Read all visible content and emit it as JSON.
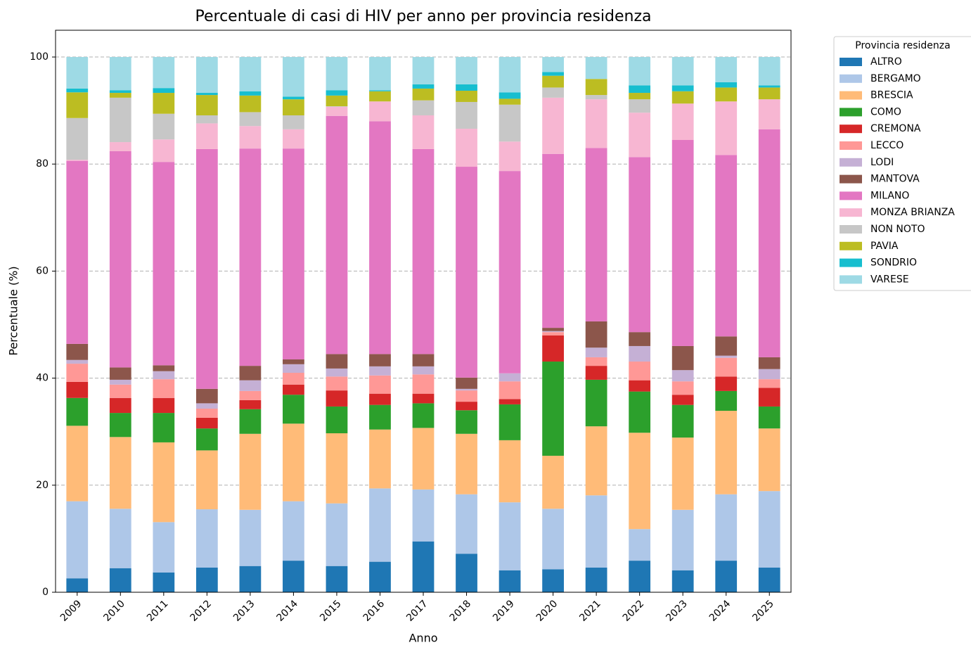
{
  "chart_data": {
    "type": "stacked_bar",
    "title": "Percentuale di casi di HIV per anno per provincia residenza",
    "x_label": "Anno",
    "y_label": "Percentuale (%)",
    "legend_title": "Provincia residenza",
    "categories": [
      "2009",
      "2010",
      "2011",
      "2012",
      "2013",
      "2014",
      "2015",
      "2016",
      "2017",
      "2018",
      "2019",
      "2020",
      "2021",
      "2022",
      "2023",
      "2024",
      "2025"
    ],
    "ylim": [
      0,
      105
    ],
    "yticks": [
      0,
      20,
      40,
      60,
      80,
      100
    ],
    "grid": true,
    "series": [
      {
        "name": "ALTRO",
        "color": "#1f77b4",
        "values": [
          2.6,
          4.5,
          3.7,
          4.6,
          4.9,
          5.9,
          4.9,
          5.7,
          9.5,
          7.2,
          4.1,
          4.3,
          4.6,
          5.9,
          4.1,
          5.9,
          4.6
        ]
      },
      {
        "name": "BERGAMO",
        "color": "#aec7e8",
        "values": [
          14.4,
          11.1,
          9.4,
          10.9,
          10.5,
          11.1,
          11.7,
          13.7,
          9.7,
          11.1,
          12.7,
          11.3,
          13.5,
          5.9,
          11.3,
          12.4,
          14.3
        ]
      },
      {
        "name": "BRESCIA",
        "color": "#ffbb78",
        "values": [
          14.1,
          13.4,
          14.9,
          11.0,
          14.2,
          14.5,
          13.1,
          11.0,
          11.5,
          11.3,
          11.6,
          9.9,
          12.9,
          18.0,
          13.5,
          15.6,
          11.7
        ]
      },
      {
        "name": "COMO",
        "color": "#2ca02c",
        "values": [
          5.2,
          4.5,
          5.5,
          4.1,
          4.6,
          5.4,
          5.0,
          4.6,
          4.6,
          4.4,
          6.7,
          17.6,
          8.7,
          7.7,
          6.1,
          3.7,
          4.1
        ]
      },
      {
        "name": "CREMONA",
        "color": "#d62728",
        "values": [
          3.0,
          2.8,
          2.8,
          2.0,
          1.7,
          1.9,
          3.0,
          2.1,
          1.8,
          1.6,
          1.0,
          4.9,
          2.6,
          2.1,
          1.9,
          2.7,
          3.5
        ]
      },
      {
        "name": "LECCO",
        "color": "#ff9896",
        "values": [
          3.4,
          2.5,
          3.5,
          1.7,
          1.7,
          2.2,
          2.6,
          3.4,
          3.6,
          2.1,
          3.3,
          0.6,
          1.6,
          3.5,
          2.5,
          3.5,
          1.6
        ]
      },
      {
        "name": "LODI",
        "color": "#c5b0d5",
        "values": [
          0.7,
          0.9,
          1.5,
          1.0,
          2.0,
          1.6,
          1.5,
          1.7,
          1.5,
          0.3,
          1.5,
          0.2,
          1.8,
          2.9,
          2.1,
          0.4,
          1.9
        ]
      },
      {
        "name": "MANTOVA",
        "color": "#8c564b",
        "values": [
          3.0,
          2.3,
          1.1,
          2.7,
          2.7,
          0.9,
          2.7,
          2.3,
          2.3,
          2.1,
          0,
          0.6,
          4.9,
          2.6,
          4.5,
          3.6,
          2.2
        ]
      },
      {
        "name": "MILANO",
        "color": "#e377c2",
        "values": [
          34.2,
          40.4,
          38.0,
          44.8,
          40.6,
          39.4,
          44.5,
          43.5,
          38.3,
          39.4,
          37.8,
          32.5,
          32.4,
          32.7,
          38.5,
          33.9,
          42.6
        ]
      },
      {
        "name": "MONZA BRIANZA",
        "color": "#f7b6d2",
        "values": [
          0.2,
          1.7,
          4.2,
          4.8,
          4.2,
          3.6,
          1.7,
          3.7,
          6.3,
          7.1,
          5.5,
          10.5,
          9.1,
          8.3,
          6.8,
          10.0,
          5.6
        ]
      },
      {
        "name": "NON NOTO",
        "color": "#c7c7c7",
        "values": [
          7.8,
          8.3,
          4.8,
          1.5,
          2.6,
          2.6,
          0.1,
          0,
          2.8,
          5.0,
          6.9,
          1.9,
          0.8,
          2.5,
          0,
          0,
          0
        ]
      },
      {
        "name": "PAVIA",
        "color": "#bcbd22",
        "values": [
          4.8,
          0.9,
          3.9,
          3.8,
          3.1,
          3.0,
          2.0,
          1.9,
          2.2,
          2.1,
          1.1,
          2.2,
          3.0,
          1.2,
          2.3,
          2.6,
          2.2
        ]
      },
      {
        "name": "SONDRIO",
        "color": "#17becf",
        "values": [
          0.7,
          0.5,
          0.9,
          0.4,
          0.8,
          0.5,
          1.0,
          0.2,
          0.8,
          1.2,
          1.2,
          0.7,
          0,
          1.4,
          1.1,
          1.0,
          0.4
        ]
      },
      {
        "name": "VARESE",
        "color": "#9edae5",
        "values": [
          5.9,
          6.2,
          5.8,
          6.7,
          6.4,
          7.4,
          6.2,
          6.2,
          5.1,
          5.1,
          6.6,
          2.8,
          4.1,
          5.3,
          5.3,
          4.7,
          5.3
        ]
      }
    ]
  }
}
